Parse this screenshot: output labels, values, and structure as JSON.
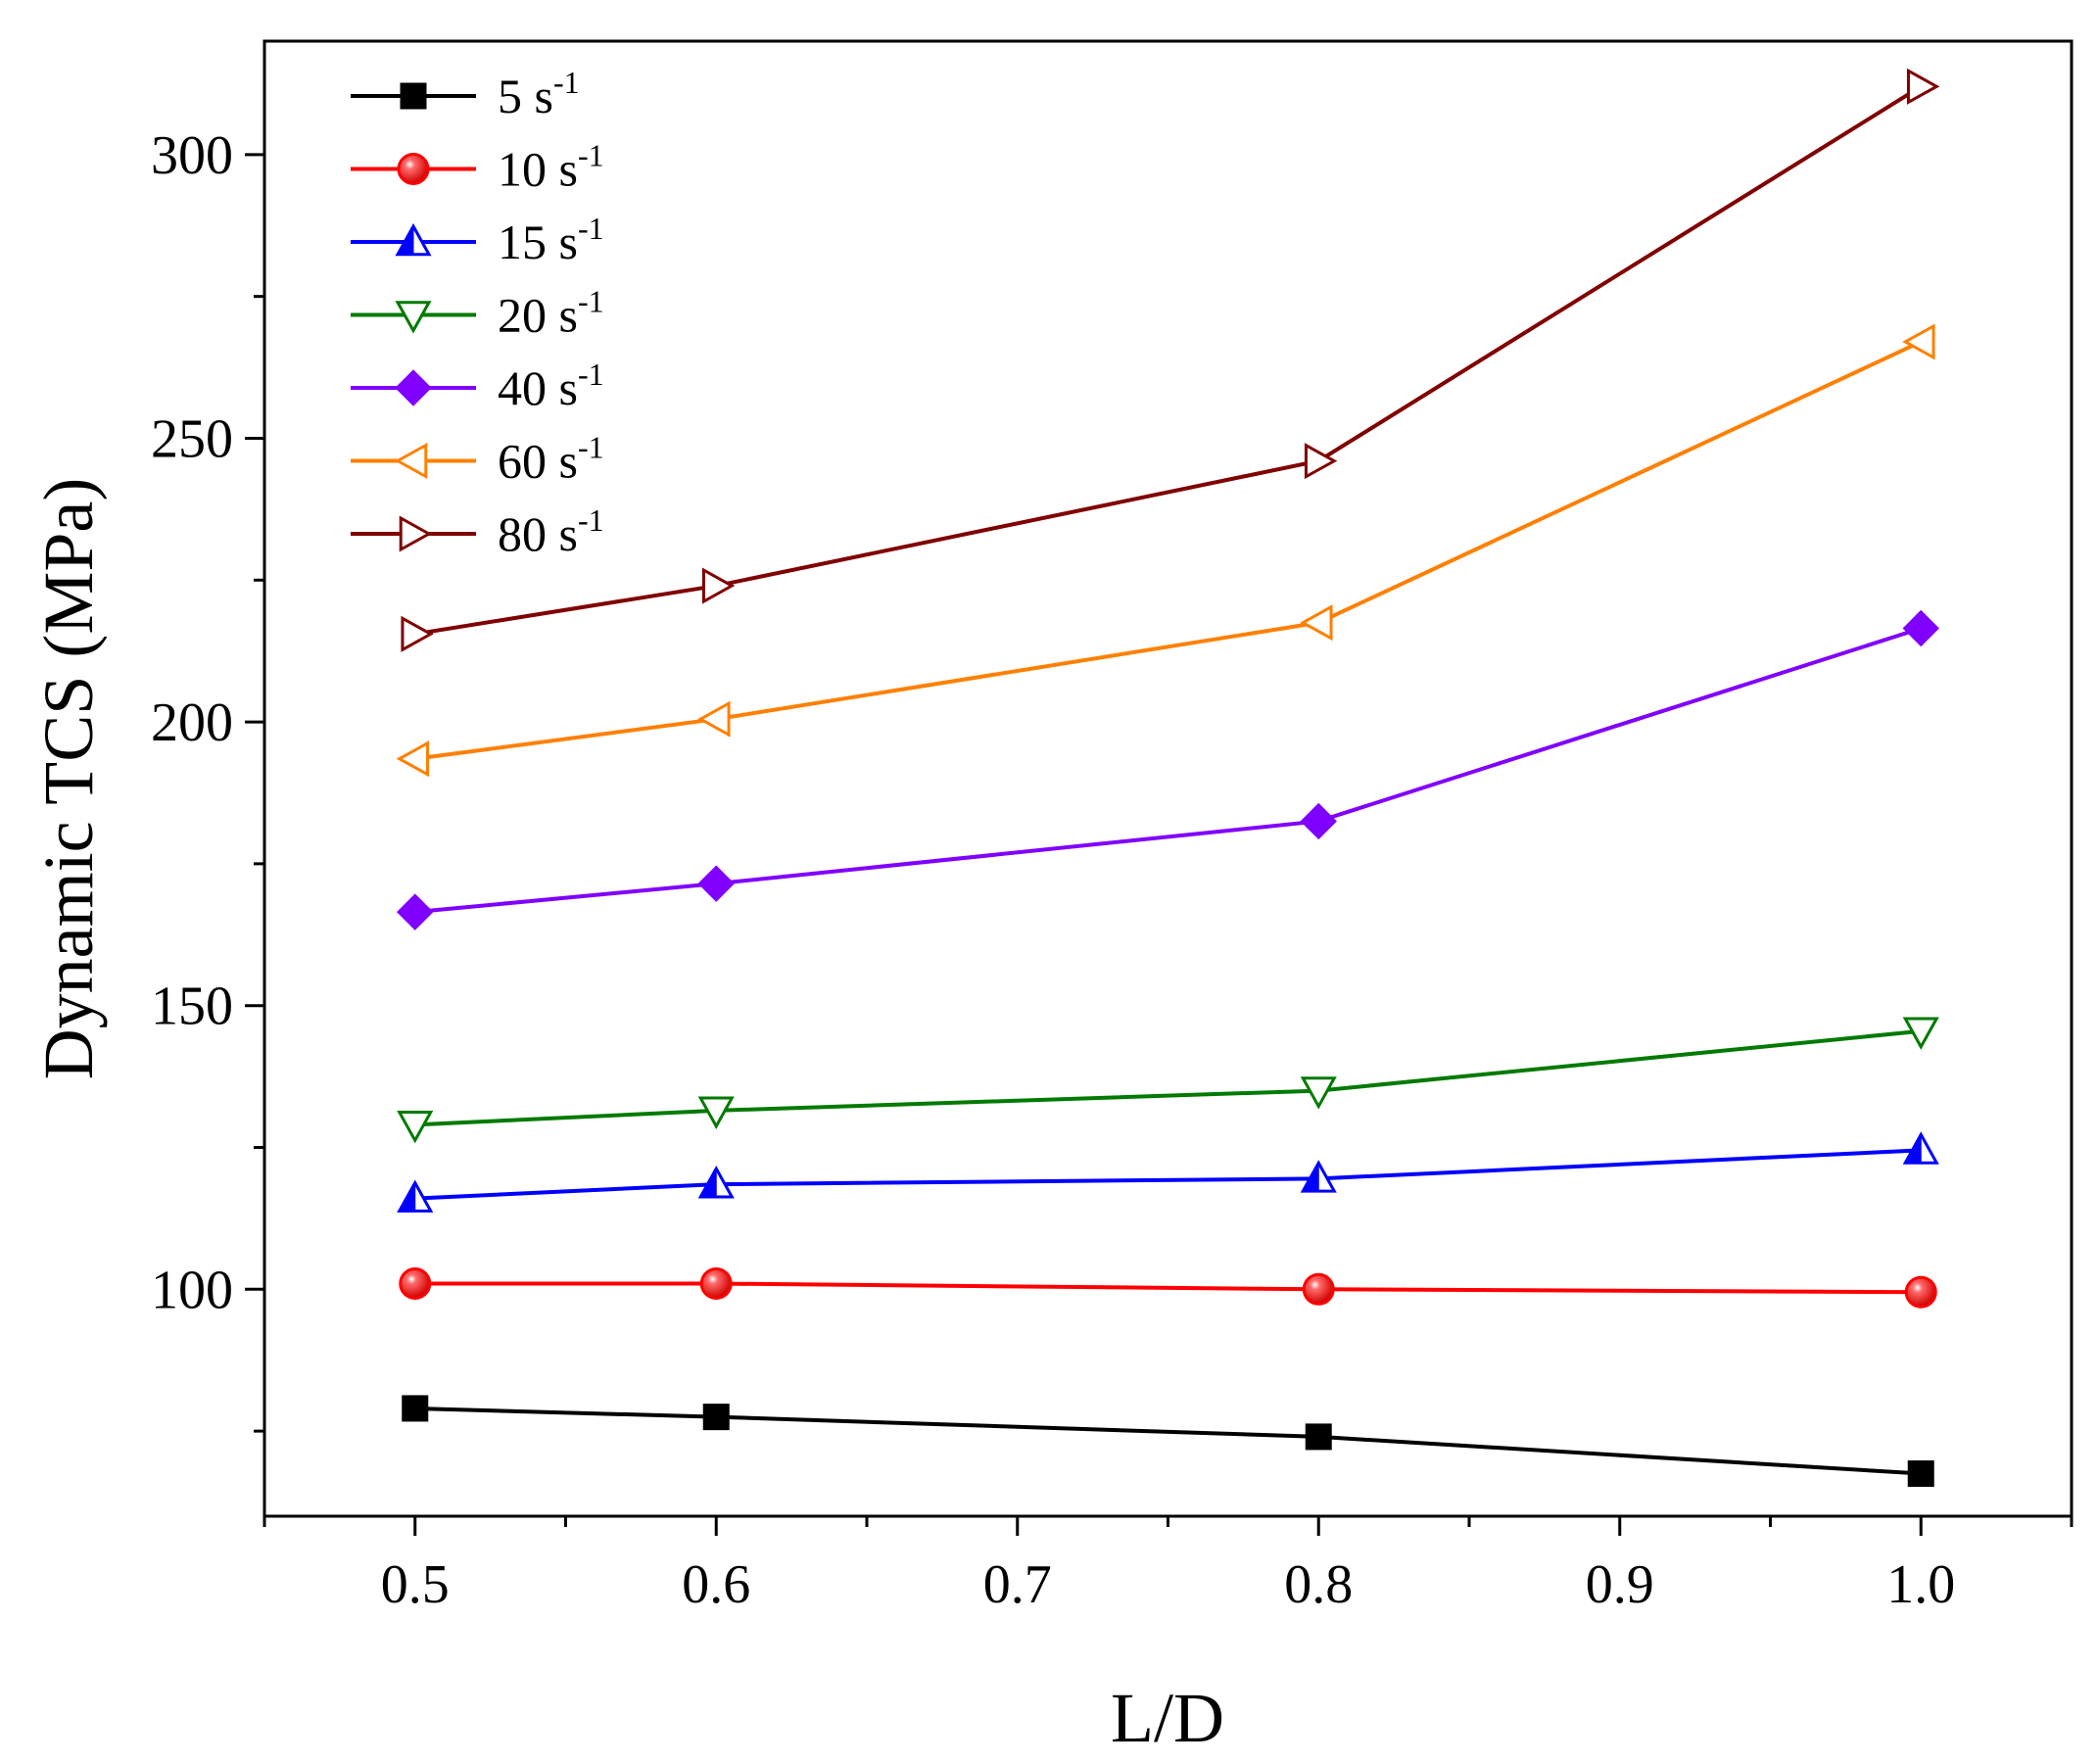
{
  "chart_data": {
    "type": "line",
    "title": "",
    "xlabel": "L/D",
    "ylabel": "Dynamic TCS (MPa)",
    "xlim": [
      0.45,
      1.05
    ],
    "ylim": [
      60,
      320
    ],
    "x": [
      0.5,
      0.6,
      0.8,
      1.0
    ],
    "xticks": [
      0.5,
      0.6,
      0.7,
      0.8,
      0.9,
      1.0
    ],
    "xtick_labels": [
      "0.5",
      "0.6",
      "0.7",
      "0.8",
      "0.9",
      "1.0"
    ],
    "yticks": [
      100,
      150,
      200,
      250,
      300
    ],
    "ytick_labels": [
      "100",
      "150",
      "200",
      "250",
      "300"
    ],
    "grid": false,
    "legend_position": "top-left",
    "series": [
      {
        "name": "5",
        "unit": "s",
        "exponent": "-1",
        "color": "#000000",
        "marker": "square-filled",
        "values": [
          79,
          77.5,
          74,
          67.5
        ]
      },
      {
        "name": "10",
        "unit": "s",
        "exponent": "-1",
        "color": "#ff0000",
        "marker": "sphere",
        "values": [
          101,
          101,
          100,
          99.5
        ]
      },
      {
        "name": "15",
        "unit": "s",
        "exponent": "-1",
        "color": "#0000ff",
        "marker": "triangle-up-half",
        "values": [
          116,
          118.5,
          119.5,
          124.5
        ]
      },
      {
        "name": "20",
        "unit": "s",
        "exponent": "-1",
        "color": "#007a00",
        "marker": "triangle-down-open",
        "values": [
          129,
          131.5,
          135,
          145.5
        ]
      },
      {
        "name": "40",
        "unit": "s",
        "exponent": "-1",
        "color": "#8000ff",
        "marker": "diamond-filled",
        "values": [
          166.5,
          171.5,
          182.5,
          216.5
        ]
      },
      {
        "name": "60",
        "unit": "s",
        "exponent": "-1",
        "color": "#ff8000",
        "marker": "triangle-left-open",
        "values": [
          193.5,
          200.5,
          217.5,
          267
        ]
      },
      {
        "name": "80",
        "unit": "s",
        "exponent": "-1",
        "color": "#800000",
        "marker": "triangle-right-open",
        "values": [
          215.5,
          224,
          246,
          312
        ]
      }
    ]
  }
}
